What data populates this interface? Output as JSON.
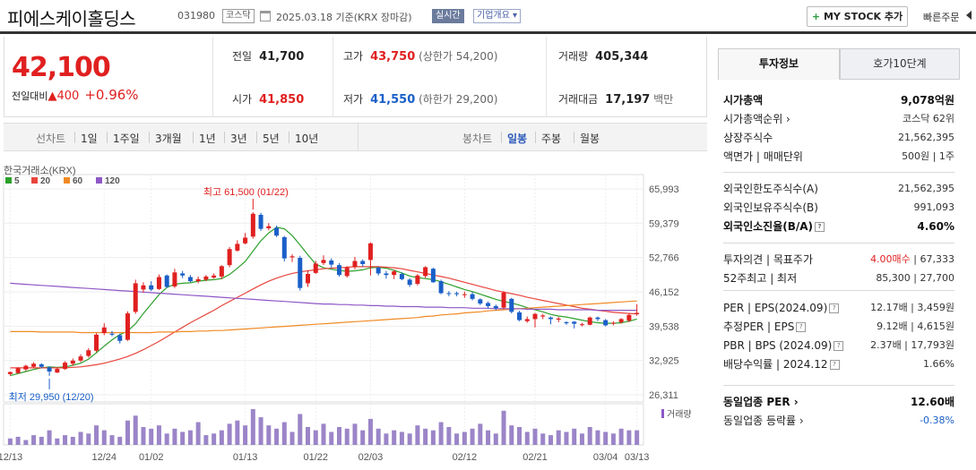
{
  "header": {
    "name": "피에스케이홀딩스",
    "code": "031980",
    "market": "코스닥",
    "date_prefix": "2025.03.18",
    "date_basis": "기준(KRX 장마감)",
    "live": "실시간",
    "company_info": "기업개요 ▾",
    "my_stock_icon": "plus-icon",
    "my_stock": "MY STOCK 추가",
    "quick_order": "빠른주문"
  },
  "price": {
    "current": "42,100",
    "diff_label": "전일대비",
    "diff_arrow": "▲",
    "diff": "400",
    "pct": "+0.96%"
  },
  "quote": {
    "prev_label": "전일",
    "prev": "41,700",
    "high_label": "고가",
    "high": "43,750",
    "upper": "(상한가 54,200)",
    "vol_label": "거래량",
    "vol": "405,344",
    "open_label": "시가",
    "open": "41,850",
    "low_label": "저가",
    "low": "41,550",
    "lower": "(하한가 29,200)",
    "amt_label": "거래대금",
    "amt": "17,197",
    "amt_unit": "백만"
  },
  "toolbar": {
    "line_label": "선차트",
    "periods": [
      "1일",
      "1주일",
      "3개월",
      "1년",
      "3년",
      "5년",
      "10년"
    ],
    "candle_label": "봉차트",
    "candle_periods": [
      "일봉",
      "주봉",
      "월봉"
    ]
  },
  "chart_data": {
    "type": "candlestick",
    "source": "한국거래소(KRX)",
    "legend": [
      {
        "name": "5",
        "color": "#2ca02c"
      },
      {
        "name": "20",
        "color": "#e8453c"
      },
      {
        "name": "60",
        "color": "#f08a24"
      },
      {
        "name": "120",
        "color": "#8e57c6"
      }
    ],
    "y_ticks": [
      "65,993",
      "59,379",
      "52,766",
      "46,152",
      "39,538",
      "32,925",
      "26,311"
    ],
    "ylim": [
      26311,
      65993
    ],
    "x_ticks": [
      "12/13",
      "12/24",
      "01/02",
      "01/13",
      "01/22",
      "02/03",
      "02/12",
      "02/21",
      "03/04",
      "03/13"
    ],
    "high_note": "최고 61,500 (01/22)",
    "low_note": "최저 29,950 (12/20)",
    "volume_label": "거래량",
    "candles": [
      [
        30700,
        30300,
        30800,
        30000
      ],
      [
        31400,
        30500,
        31600,
        30400
      ],
      [
        31900,
        31200,
        32100,
        30900
      ],
      [
        32300,
        31700,
        32600,
        31500
      ],
      [
        31700,
        32200,
        32400,
        31400
      ],
      [
        30800,
        31600,
        31800,
        29950
      ],
      [
        31300,
        30600,
        31500,
        30500
      ],
      [
        32500,
        31300,
        32800,
        31100
      ],
      [
        32900,
        32300,
        33300,
        31900
      ],
      [
        33700,
        32900,
        34100,
        32600
      ],
      [
        34900,
        33800,
        35300,
        33500
      ],
      [
        37900,
        34800,
        38200,
        34500
      ],
      [
        39300,
        38200,
        40100,
        37800
      ],
      [
        37900,
        38100,
        38600,
        37600
      ],
      [
        36700,
        37800,
        38100,
        36200
      ],
      [
        42000,
        36900,
        42400,
        36700
      ],
      [
        47800,
        42300,
        48500,
        41900
      ],
      [
        47400,
        46600,
        48000,
        46000
      ],
      [
        46600,
        47400,
        48200,
        46300
      ],
      [
        49000,
        46700,
        49500,
        46500
      ],
      [
        47100,
        49300,
        49500,
        46900
      ],
      [
        49900,
        47200,
        50600,
        46900
      ],
      [
        49300,
        49700,
        50200,
        48800
      ],
      [
        48200,
        49000,
        49400,
        48000
      ],
      [
        48600,
        48200,
        49100,
        47800
      ],
      [
        49100,
        48500,
        49400,
        48200
      ],
      [
        49300,
        48900,
        49700,
        48700
      ],
      [
        51100,
        49100,
        51300,
        48600
      ],
      [
        54400,
        51300,
        54800,
        50900
      ],
      [
        55400,
        54100,
        56100,
        53900
      ],
      [
        56600,
        55500,
        57500,
        55300
      ],
      [
        61200,
        56800,
        61500,
        56400
      ],
      [
        58300,
        61000,
        61400,
        57900
      ],
      [
        58800,
        58400,
        59400,
        58000
      ],
      [
        57000,
        58500,
        58900,
        56700
      ],
      [
        52600,
        56700,
        56900,
        52000
      ],
      [
        53000,
        52800,
        53400,
        51900
      ],
      [
        46900,
        52700,
        53100,
        46400
      ],
      [
        49600,
        47800,
        50300,
        47100
      ],
      [
        51600,
        49800,
        52100,
        49600
      ],
      [
        52300,
        51700,
        53200,
        51300
      ],
      [
        51400,
        52200,
        52600,
        50700
      ],
      [
        49400,
        51300,
        51700,
        49100
      ],
      [
        50800,
        49200,
        51100,
        48900
      ],
      [
        52100,
        50900,
        52900,
        50500
      ],
      [
        51500,
        52100,
        52400,
        51000
      ],
      [
        55500,
        52300,
        55700,
        49300
      ],
      [
        49700,
        50800,
        51000,
        49300
      ],
      [
        49400,
        49700,
        50200,
        48700
      ],
      [
        50100,
        49400,
        50400,
        48600
      ],
      [
        48600,
        49600,
        49900,
        48400
      ],
      [
        47500,
        48500,
        48800,
        47100
      ],
      [
        49300,
        47700,
        49600,
        47400
      ],
      [
        50900,
        49200,
        51100,
        48800
      ],
      [
        48000,
        50600,
        50800,
        47900
      ],
      [
        45900,
        48200,
        48500,
        45700
      ],
      [
        45800,
        45900,
        46300,
        45300
      ],
      [
        45700,
        45900,
        46200,
        45300
      ],
      [
        45700,
        45700,
        46200,
        45000
      ],
      [
        44800,
        45700,
        46100,
        44500
      ],
      [
        43900,
        44700,
        44900,
        43600
      ],
      [
        43400,
        44000,
        44300,
        42900
      ],
      [
        43000,
        43400,
        43700,
        42600
      ],
      [
        46000,
        43100,
        46300,
        42800
      ],
      [
        42300,
        44800,
        45000,
        42000
      ],
      [
        40700,
        42200,
        42500,
        40500
      ],
      [
        40900,
        40500,
        41400,
        40200
      ],
      [
        41900,
        40900,
        42100,
        39300
      ],
      [
        41600,
        41400,
        41900,
        40900
      ],
      [
        40900,
        41200,
        41400,
        39900
      ],
      [
        41000,
        40800,
        41300,
        40300
      ],
      [
        40100,
        40300,
        40500,
        39800
      ],
      [
        40000,
        40400,
        40500,
        39100
      ],
      [
        39900,
        39800,
        40200,
        39500
      ],
      [
        41200,
        39800,
        41400,
        39700
      ],
      [
        40900,
        41200,
        41400,
        40500
      ],
      [
        39700,
        40700,
        40900,
        39500
      ],
      [
        40200,
        40100,
        40500,
        39700
      ],
      [
        40900,
        40300,
        41100,
        40000
      ],
      [
        41700,
        40600,
        42000,
        40300
      ],
      [
        42100,
        41850,
        43750,
        41550
      ]
    ],
    "volumes": [
      4,
      5,
      3,
      6,
      5,
      9,
      4,
      6,
      5,
      8,
      7,
      12,
      9,
      6,
      5,
      15,
      18,
      11,
      10,
      12,
      7,
      10,
      8,
      9,
      14,
      6,
      7,
      9,
      13,
      15,
      12,
      22,
      17,
      12,
      10,
      14,
      8,
      19,
      11,
      9,
      13,
      8,
      11,
      10,
      13,
      9,
      16,
      10,
      7,
      9,
      8,
      7,
      12,
      10,
      9,
      14,
      11,
      7,
      8,
      10,
      13,
      9,
      7,
      21,
      12,
      11,
      8,
      10,
      7,
      6,
      9,
      8,
      10,
      7,
      11,
      9,
      8,
      7,
      10,
      9,
      9
    ],
    "ma": {
      "5": [
        30000,
        30400,
        30800,
        31200,
        31500,
        31700,
        31600,
        31700,
        32000,
        32400,
        33200,
        34400,
        35700,
        36900,
        37900,
        38600,
        40000,
        42000,
        43800,
        45600,
        47000,
        47600,
        47800,
        47900,
        48200,
        48400,
        48500,
        48700,
        49500,
        50700,
        52000,
        54000,
        56000,
        57500,
        58600,
        58300,
        57000,
        55200,
        53300,
        51500,
        50800,
        50500,
        50300,
        50100,
        50200,
        50400,
        50800,
        50900,
        50700,
        50300,
        49800,
        49200,
        48900,
        48700,
        48500,
        48100,
        47600,
        47100,
        46600,
        46200,
        45700,
        45200,
        44700,
        44300,
        44000,
        43600,
        43100,
        42700,
        42300,
        41800,
        41500,
        41300,
        41000,
        40700,
        40400,
        40200,
        40100,
        40100,
        40200,
        40500,
        40900
      ],
      "20": [
        31500,
        31500,
        31500,
        31500,
        31500,
        31500,
        31500,
        31500,
        31600,
        31700,
        31900,
        32100,
        32400,
        32800,
        33200,
        33700,
        34300,
        35000,
        35800,
        36600,
        37500,
        38400,
        39300,
        40200,
        41000,
        41800,
        42600,
        43500,
        44300,
        45100,
        45900,
        46700,
        47500,
        48200,
        48800,
        49300,
        49700,
        50000,
        50200,
        50400,
        50600,
        50700,
        50800,
        50900,
        51000,
        51000,
        51000,
        51000,
        50900,
        50800,
        50600,
        50300,
        50000,
        49700,
        49400,
        49100,
        48800,
        48400,
        48000,
        47600,
        47200,
        46800,
        46400,
        46100,
        45800,
        45500,
        45100,
        44800,
        44500,
        44200,
        43900,
        43600,
        43300,
        43000,
        42800,
        42600,
        42400,
        42200,
        42100,
        42000,
        41900
      ],
      "60": [
        38500,
        38500,
        38500,
        38500,
        38400,
        38400,
        38400,
        38400,
        38400,
        38300,
        38300,
        38300,
        38300,
        38300,
        38300,
        38300,
        38300,
        38300,
        38300,
        38400,
        38400,
        38400,
        38500,
        38500,
        38600,
        38600,
        38700,
        38700,
        38800,
        38900,
        39000,
        39100,
        39200,
        39300,
        39400,
        39500,
        39600,
        39700,
        39800,
        39900,
        40000,
        40100,
        40200,
        40300,
        40400,
        40500,
        40600,
        40700,
        40800,
        40900,
        41000,
        41100,
        41200,
        41400,
        41500,
        41700,
        41800,
        41900,
        42100,
        42200,
        42300,
        42500,
        42600,
        42700,
        42800,
        42900,
        43000,
        43100,
        43200,
        43300,
        43400,
        43500,
        43600,
        43700,
        43800,
        43900,
        44000,
        44100,
        44200,
        44300,
        44400
      ],
      "120": [
        47800,
        47700,
        47600,
        47500,
        47400,
        47300,
        47200,
        47100,
        47000,
        46900,
        46800,
        46700,
        46600,
        46500,
        46400,
        46300,
        46200,
        46100,
        46000,
        45900,
        45800,
        45700,
        45600,
        45500,
        45400,
        45300,
        45200,
        45100,
        45000,
        44900,
        44800,
        44700,
        44600,
        44500,
        44400,
        44300,
        44200,
        44100,
        44000,
        43900,
        43800,
        43800,
        43700,
        43700,
        43600,
        43600,
        43500,
        43500,
        43400,
        43400,
        43300,
        43300,
        43300,
        43200,
        43200,
        43200,
        43100,
        43100,
        43100,
        43000,
        43000,
        43000,
        42900,
        42900,
        42900,
        42900,
        42800,
        42800,
        42800,
        42800,
        42700,
        42700,
        42700,
        42700,
        42700,
        42600,
        42600,
        42600,
        42600,
        42600,
        42600
      ]
    }
  },
  "panel": {
    "tab_active": "투자정보",
    "tab_other": "호가10단계",
    "rows": [
      {
        "l": "시가총액",
        "v": "9,078억원",
        "bold": true
      },
      {
        "l": "시가총액순위 ›",
        "v": "코스닥 62위"
      },
      {
        "l": "상장주식수",
        "v": "21,562,395"
      },
      {
        "l": "액면가 | 매매단위",
        "v": "500원 | 1주"
      },
      {
        "l": "외국인한도주식수(A)",
        "v": "21,562,395"
      },
      {
        "l": "외국인보유주식수(B)",
        "v": "991,093"
      },
      {
        "l": "외국인소진율(B/A)",
        "v": "4.60%",
        "bold": true,
        "ib": "info-icon"
      },
      {
        "l": "투자의견 | 목표주가",
        "v": "4.00매수 | 67,333",
        "vred": "4.00매수"
      },
      {
        "l": "52주최고 | 최저",
        "v": "85,300 | 27,700"
      },
      {
        "l": "PER | EPS(2024.09)",
        "v": "12.17배 | 3,459원",
        "ib": "info-icon"
      },
      {
        "l": "추정PER | EPS",
        "v": "9.12배 | 4,615원",
        "ib": "info-icon"
      },
      {
        "l": "PBR | BPS (2024.09)",
        "v": "2.37배 | 17,793원",
        "ib": "info-icon"
      },
      {
        "l": "배당수익률 | 2024.12",
        "v": "1.66%",
        "ib": "info-icon"
      },
      {
        "l": "동일업종 PER ›",
        "v": "12.60배",
        "bold": true
      },
      {
        "l": "동일업종 등락률 ›",
        "v": "-0.38%",
        "vblue": true
      }
    ]
  }
}
